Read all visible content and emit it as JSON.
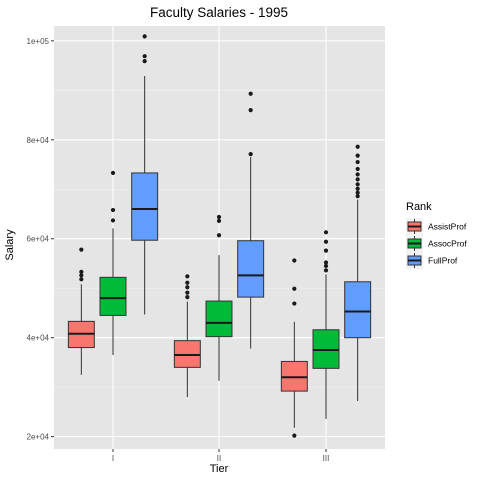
{
  "chart_data": {
    "type": "boxplot",
    "title": "Faculty Salaries - 1995",
    "xlabel": "Tier",
    "ylabel": "Salary",
    "ylim": [
      17500,
      103000
    ],
    "yticks": [
      20000,
      40000,
      60000,
      80000,
      100000
    ],
    "ytick_labels": [
      "2e+04",
      "4e+04",
      "6e+04",
      "8e+04",
      "1e+05"
    ],
    "categories": [
      "I",
      "II",
      "III"
    ],
    "grid": true,
    "legend": {
      "title": "Rank",
      "placement": "right",
      "entries": [
        "AssistProf",
        "AssocProf",
        "FullProf"
      ]
    },
    "series": [
      {
        "name": "AssistProf",
        "color": "#f8766d",
        "boxes": [
          {
            "category": "I",
            "min": 32500,
            "q1": 38000,
            "median": 40800,
            "q3": 43300,
            "max": 50800,
            "outliers": [
              51800,
              52600,
              53300,
              57800
            ]
          },
          {
            "category": "II",
            "min": 28000,
            "q1": 34000,
            "median": 36500,
            "q3": 39400,
            "max": 47300,
            "outliers": [
              48200,
              49100,
              50200,
              51100,
              52400
            ]
          },
          {
            "category": "III",
            "min": 21800,
            "q1": 29200,
            "median": 32000,
            "q3": 35200,
            "max": 43200,
            "outliers": [
              20200,
              46900,
              49900,
              55600
            ]
          }
        ]
      },
      {
        "name": "AssocProf",
        "color": "#00ba38",
        "boxes": [
          {
            "category": "I",
            "min": 36500,
            "q1": 44500,
            "median": 48000,
            "q3": 52200,
            "max": 62100,
            "outliers": [
              63700,
              65800,
              73300
            ]
          },
          {
            "category": "II",
            "min": 31300,
            "q1": 40200,
            "median": 43000,
            "q3": 47400,
            "max": 56700,
            "outliers": [
              60700,
              63600,
              64400
            ]
          },
          {
            "category": "III",
            "min": 23600,
            "q1": 33800,
            "median": 37500,
            "q3": 41600,
            "max": 52800,
            "outliers": [
              53600,
              54500,
              55200,
              57600,
              59400,
              61300
            ]
          }
        ]
      },
      {
        "name": "FullProf",
        "color": "#619cff",
        "boxes": [
          {
            "category": "I",
            "min": 44700,
            "q1": 59700,
            "median": 66000,
            "q3": 73300,
            "max": 92900,
            "outliers": [
              95900,
              96900,
              100900
            ]
          },
          {
            "category": "II",
            "min": 37800,
            "q1": 48200,
            "median": 52600,
            "q3": 59600,
            "max": 76500,
            "outliers": [
              77100,
              86000,
              89300
            ]
          },
          {
            "category": "III",
            "min": 27200,
            "q1": 40000,
            "median": 45300,
            "q3": 51300,
            "max": 67900,
            "outliers": [
              68600,
              69300,
              70100,
              71000,
              72000,
              73000,
              74100,
              75500,
              76800,
              78600
            ]
          }
        ]
      }
    ]
  }
}
